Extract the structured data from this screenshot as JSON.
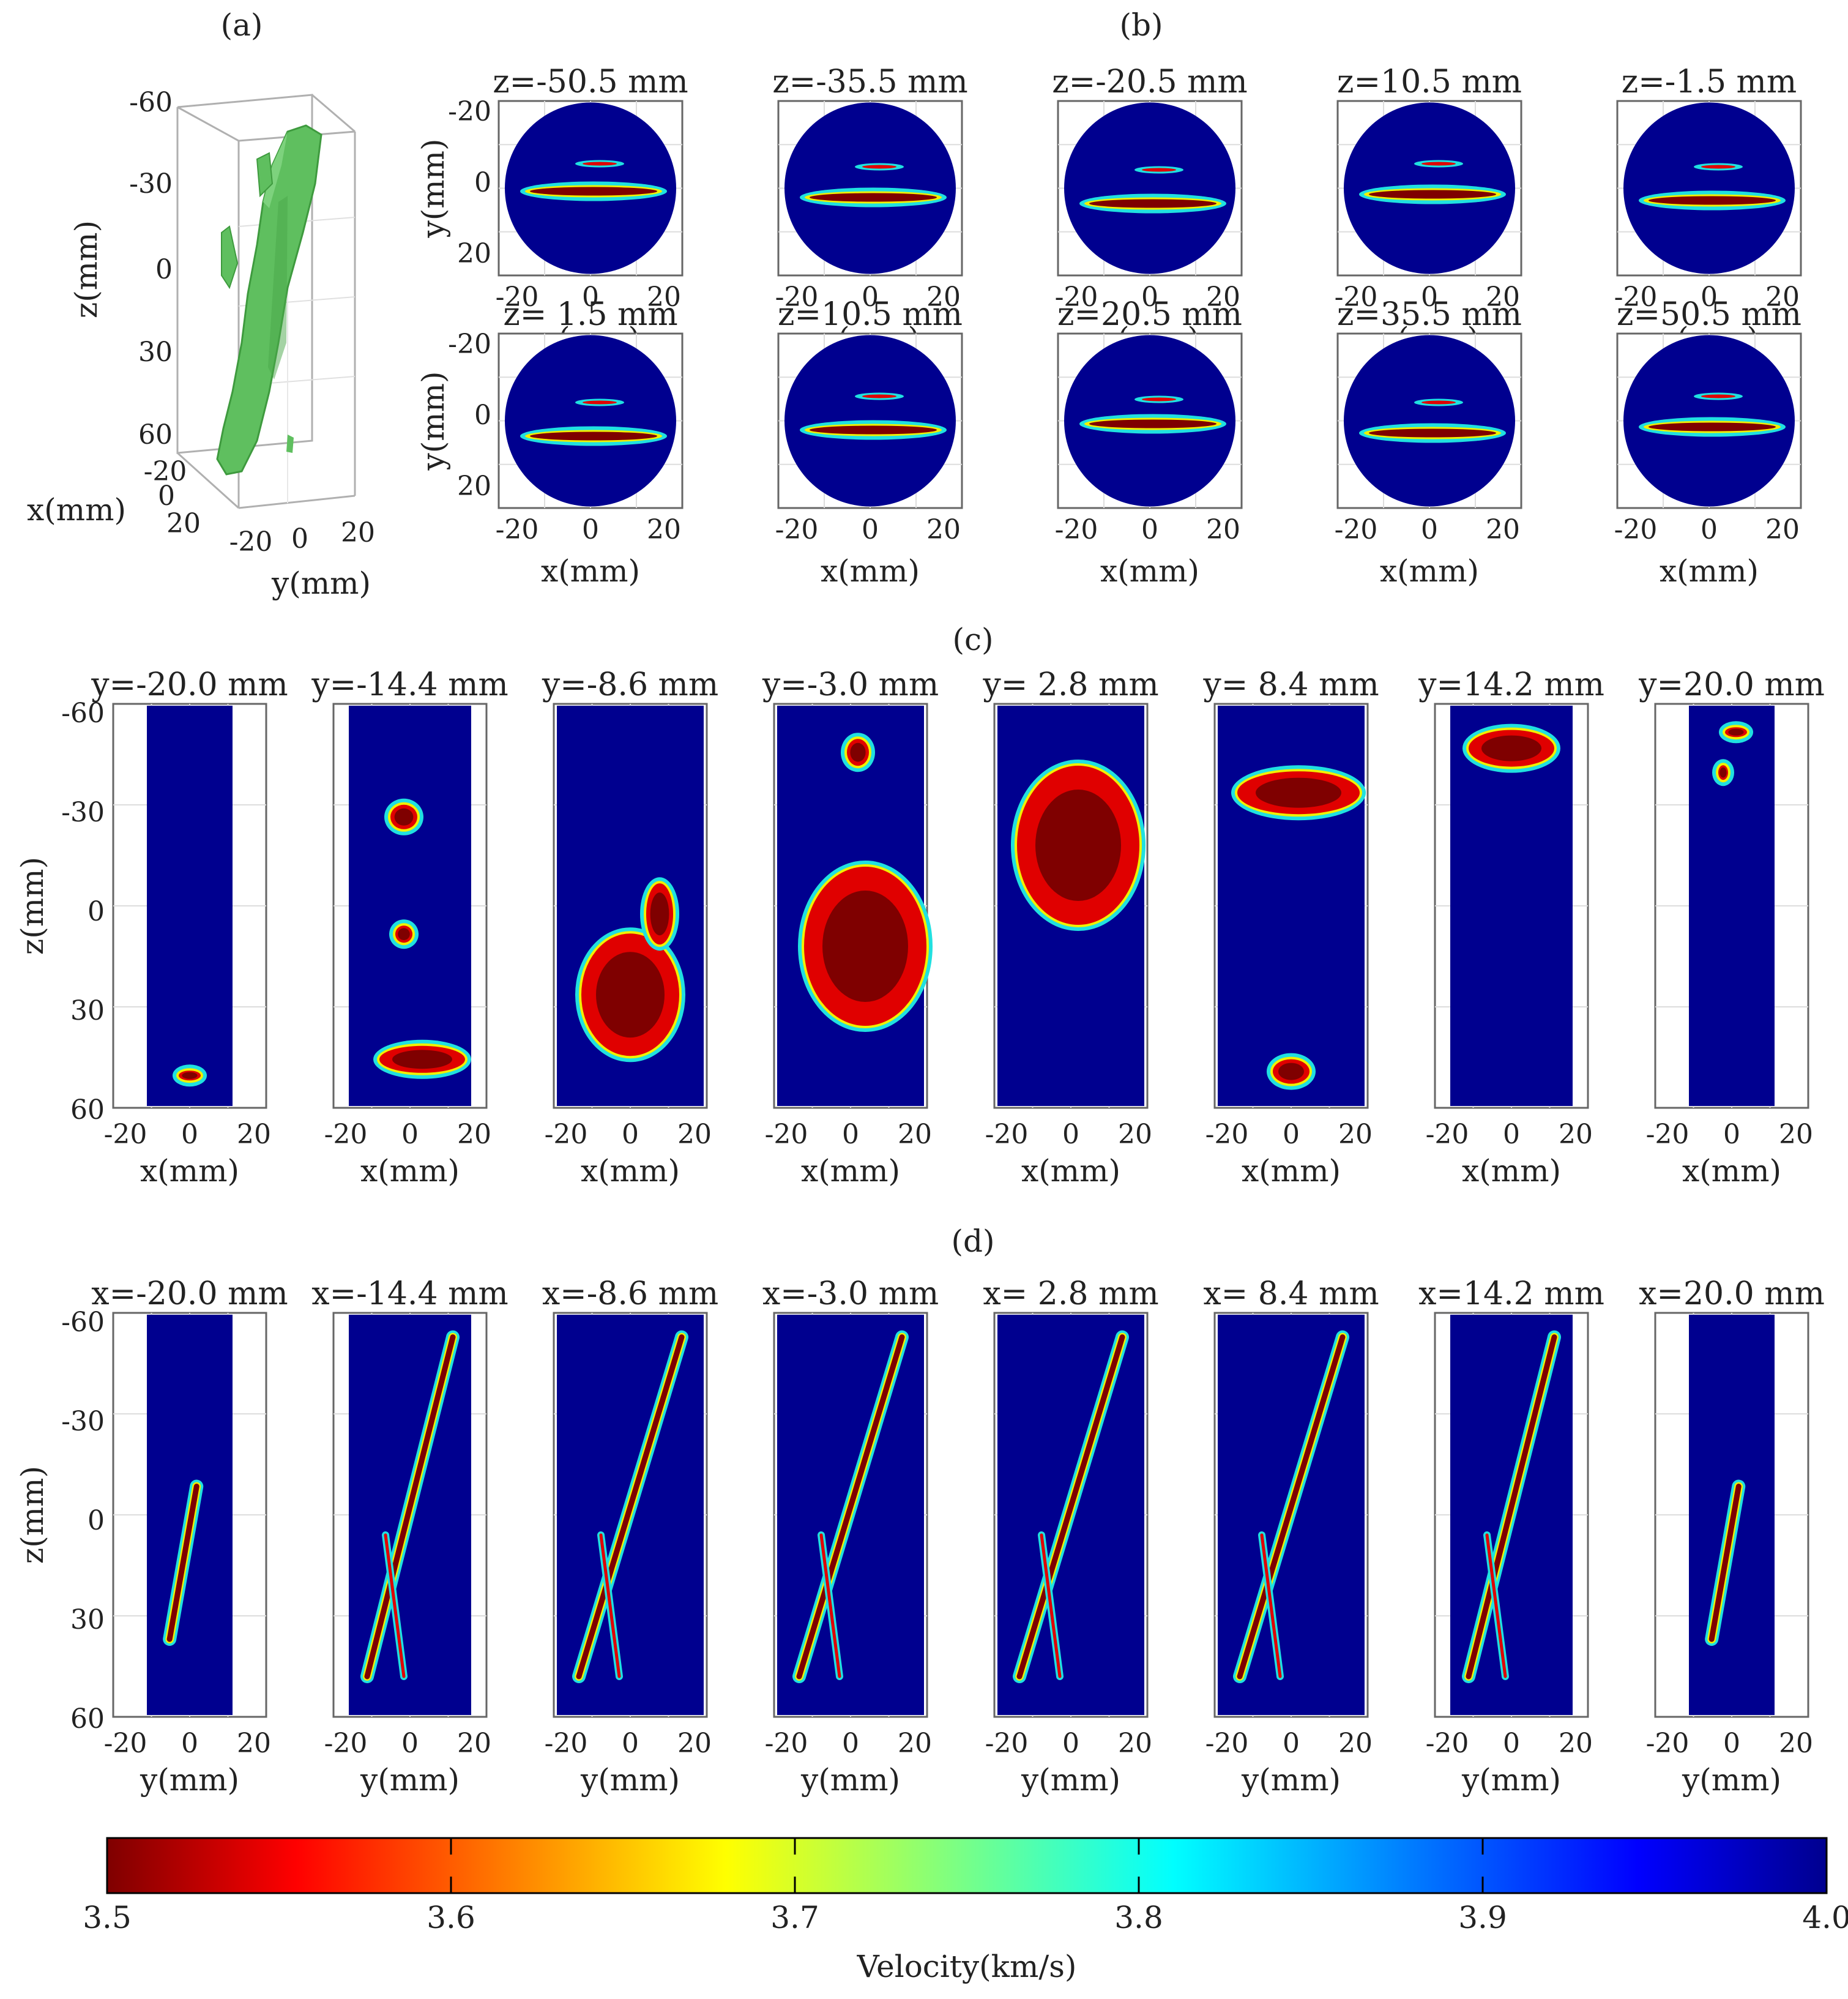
{
  "panel_labels": {
    "a": "(a)",
    "b": "(b)",
    "c": "(c)",
    "d": "(d)"
  },
  "panel_a": {
    "z_label": "z(mm)",
    "x_label": "x(mm)",
    "y_label": "y(mm)",
    "z_ticks": [
      "-60",
      "-30",
      "0",
      "30",
      "60"
    ],
    "x_ticks": [
      "-20",
      "0",
      "20"
    ],
    "y_ticks": [
      "-20",
      "0",
      "20"
    ],
    "isosurface_color": "#5fbf5f"
  },
  "panel_b": {
    "x_label": "x(mm)",
    "y_label": "y(mm)",
    "x_ticks": [
      "-20",
      "0",
      "20"
    ],
    "y_ticks": [
      "-20",
      "0",
      "20"
    ],
    "rows": [
      [
        "z=-50.5 mm",
        "z=-35.5 mm",
        "z=-20.5 mm",
        "z=10.5 mm",
        "z=-1.5 mm"
      ],
      [
        "z= 1.5 mm",
        "z=10.5 mm",
        "z=20.5 mm",
        "z=35.5 mm",
        "z=50.5 mm"
      ]
    ]
  },
  "panel_c": {
    "x_label": "x(mm)",
    "z_label": "z(mm)",
    "x_ticks": [
      "-20",
      "0",
      "20"
    ],
    "z_ticks": [
      "-60",
      "-30",
      "0",
      "30",
      "60"
    ],
    "titles": [
      "y=-20.0 mm",
      "y=-14.4 mm",
      "y=-8.6 mm",
      "y=-3.0 mm",
      "y= 2.8 mm",
      "y= 8.4 mm",
      "y=14.2 mm",
      "y=20.0 mm"
    ]
  },
  "panel_d": {
    "y_label": "y(mm)",
    "z_label": "z(mm)",
    "x_ticks": [
      "-20",
      "0",
      "20"
    ],
    "z_ticks": [
      "-60",
      "-30",
      "0",
      "30",
      "60"
    ],
    "titles": [
      "x=-20.0 mm",
      "x=-14.4 mm",
      "x=-8.6 mm",
      "x=-3.0 mm",
      "x= 2.8 mm",
      "x= 8.4 mm",
      "x=14.2 mm",
      "x=20.0 mm"
    ]
  },
  "colorbar": {
    "label": "Velocity(km/s)",
    "ticks": [
      "3.5",
      "3.6",
      "3.7",
      "3.8",
      "3.9",
      "4.0"
    ],
    "range": [
      3.5,
      4.0
    ],
    "colormap": "jet (reversed: 3.5 dark red, 4.0 dark blue)"
  },
  "colors": {
    "background_blue": "#00008f",
    "dark_red": "#7f0000",
    "red": "#e00000",
    "yellow": "#f0f000",
    "cyan": "#20e0e0",
    "mid_blue": "#0050f0"
  }
}
